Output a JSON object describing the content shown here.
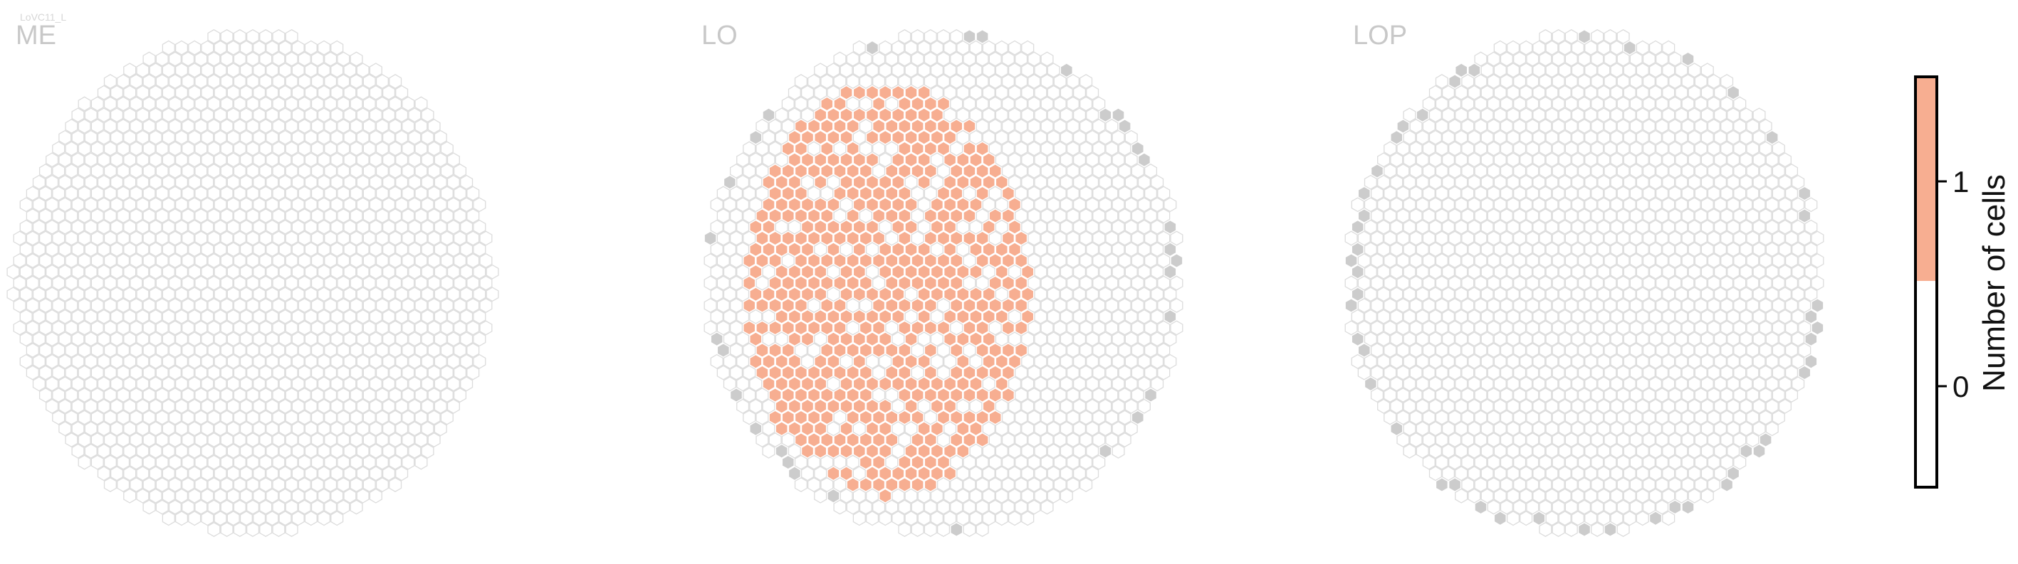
{
  "figure": {
    "cell_type_label": "LoVC11_L"
  },
  "chart_data": {
    "type": "heatmap",
    "panels": [
      {
        "name": "ME",
        "columns": 31,
        "rows": 36
      },
      {
        "name": "LO",
        "columns": 34,
        "rows": 36
      },
      {
        "name": "LOP",
        "columns": 35,
        "rows": 36
      }
    ],
    "colorbar": {
      "label": "Number of cells",
      "ticks": [
        0,
        1
      ],
      "range": [
        -0.5,
        1.5
      ],
      "bins": [
        {
          "value": 0,
          "color": "#ffffff"
        },
        {
          "value": 1,
          "color": "#f7ae91"
        }
      ]
    },
    "colors": {
      "background_hex_stroke": "#dcdcdc",
      "outside_column": "#cccccc",
      "filled": "#f7ae91"
    }
  }
}
